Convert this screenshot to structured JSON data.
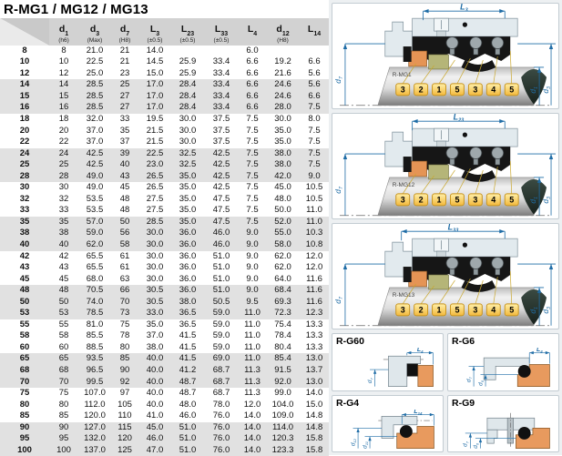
{
  "title": "R-MG1 / MG12 / MG13",
  "table": {
    "headers": [
      {
        "main": "",
        "sub": "",
        "note": ""
      },
      {
        "main": "d",
        "sub": "1",
        "note": "(h6)"
      },
      {
        "main": "d",
        "sub": "3",
        "note": "(Max)"
      },
      {
        "main": "d",
        "sub": "7",
        "note": "(H8)"
      },
      {
        "main": "L",
        "sub": "3",
        "note": "(±0.5)"
      },
      {
        "main": "L",
        "sub": "23",
        "note": "(±0.5)"
      },
      {
        "main": "L",
        "sub": "33",
        "note": "(±0.5)"
      },
      {
        "main": "L",
        "sub": "4",
        "note": ""
      },
      {
        "main": "d",
        "sub": "12",
        "note": "(H8)"
      },
      {
        "main": "L",
        "sub": "14",
        "note": ""
      }
    ],
    "rows": [
      [
        "8",
        "8",
        "21.0",
        "21",
        "14.0",
        "",
        "",
        "6.0",
        "",
        ""
      ],
      [
        "10",
        "10",
        "22.5",
        "21",
        "14.5",
        "25.9",
        "33.4",
        "6.6",
        "19.2",
        "6.6"
      ],
      [
        "12",
        "12",
        "25.0",
        "23",
        "15.0",
        "25.9",
        "33.4",
        "6.6",
        "21.6",
        "5.6"
      ],
      [
        "14",
        "14",
        "28.5",
        "25",
        "17.0",
        "28.4",
        "33.4",
        "6.6",
        "24.6",
        "5.6"
      ],
      [
        "15",
        "15",
        "28.5",
        "27",
        "17.0",
        "28.4",
        "33.4",
        "6.6",
        "24.6",
        "6.6"
      ],
      [
        "16",
        "16",
        "28.5",
        "27",
        "17.0",
        "28.4",
        "33.4",
        "6.6",
        "28.0",
        "7.5"
      ],
      [
        "18",
        "18",
        "32.0",
        "33",
        "19.5",
        "30.0",
        "37.5",
        "7.5",
        "30.0",
        "8.0"
      ],
      [
        "20",
        "20",
        "37.0",
        "35",
        "21.5",
        "30.0",
        "37.5",
        "7.5",
        "35.0",
        "7.5"
      ],
      [
        "22",
        "22",
        "37.0",
        "37",
        "21.5",
        "30.0",
        "37.5",
        "7.5",
        "35.0",
        "7.5"
      ],
      [
        "24",
        "24",
        "42.5",
        "39",
        "22.5",
        "32.5",
        "42.5",
        "7.5",
        "38.0",
        "7.5"
      ],
      [
        "25",
        "25",
        "42.5",
        "40",
        "23.0",
        "32.5",
        "42.5",
        "7.5",
        "38.0",
        "7.5"
      ],
      [
        "28",
        "28",
        "49.0",
        "43",
        "26.5",
        "35.0",
        "42.5",
        "7.5",
        "42.0",
        "9.0"
      ],
      [
        "30",
        "30",
        "49.0",
        "45",
        "26.5",
        "35.0",
        "42.5",
        "7.5",
        "45.0",
        "10.5"
      ],
      [
        "32",
        "32",
        "53.5",
        "48",
        "27.5",
        "35.0",
        "47.5",
        "7.5",
        "48.0",
        "10.5"
      ],
      [
        "33",
        "33",
        "53.5",
        "48",
        "27.5",
        "35.0",
        "47.5",
        "7.5",
        "50.0",
        "11.0"
      ],
      [
        "35",
        "35",
        "57.0",
        "50",
        "28.5",
        "35.0",
        "47.5",
        "7.5",
        "52.0",
        "11.0"
      ],
      [
        "38",
        "38",
        "59.0",
        "56",
        "30.0",
        "36.0",
        "46.0",
        "9.0",
        "55.0",
        "10.3"
      ],
      [
        "40",
        "40",
        "62.0",
        "58",
        "30.0",
        "36.0",
        "46.0",
        "9.0",
        "58.0",
        "10.8"
      ],
      [
        "42",
        "42",
        "65.5",
        "61",
        "30.0",
        "36.0",
        "51.0",
        "9.0",
        "62.0",
        "12.0"
      ],
      [
        "43",
        "43",
        "65.5",
        "61",
        "30.0",
        "36.0",
        "51.0",
        "9.0",
        "62.0",
        "12.0"
      ],
      [
        "45",
        "45",
        "68.0",
        "63",
        "30.0",
        "36.0",
        "51.0",
        "9.0",
        "64.0",
        "11.6"
      ],
      [
        "48",
        "48",
        "70.5",
        "66",
        "30.5",
        "36.0",
        "51.0",
        "9.0",
        "68.4",
        "11.6"
      ],
      [
        "50",
        "50",
        "74.0",
        "70",
        "30.5",
        "38.0",
        "50.5",
        "9.5",
        "69.3",
        "11.6"
      ],
      [
        "53",
        "53",
        "78.5",
        "73",
        "33.0",
        "36.5",
        "59.0",
        "11.0",
        "72.3",
        "12.3"
      ],
      [
        "55",
        "55",
        "81.0",
        "75",
        "35.0",
        "36.5",
        "59.0",
        "11.0",
        "75.4",
        "13.3"
      ],
      [
        "58",
        "58",
        "85.5",
        "78",
        "37.0",
        "41.5",
        "59.0",
        "11.0",
        "78.4",
        "13.3"
      ],
      [
        "60",
        "60",
        "88.5",
        "80",
        "38.0",
        "41.5",
        "59.0",
        "11.0",
        "80.4",
        "13.3"
      ],
      [
        "65",
        "65",
        "93.5",
        "85",
        "40.0",
        "41.5",
        "69.0",
        "11.0",
        "85.4",
        "13.0"
      ],
      [
        "68",
        "68",
        "96.5",
        "90",
        "40.0",
        "41.2",
        "68.7",
        "11.3",
        "91.5",
        "13.7"
      ],
      [
        "70",
        "70",
        "99.5",
        "92",
        "40.0",
        "48.7",
        "68.7",
        "11.3",
        "92.0",
        "13.0"
      ],
      [
        "75",
        "75",
        "107.0",
        "97",
        "40.0",
        "48.7",
        "68.7",
        "11.3",
        "99.0",
        "14.0"
      ],
      [
        "80",
        "80",
        "112.0",
        "105",
        "40.0",
        "48.0",
        "78.0",
        "12.0",
        "104.0",
        "15.0"
      ],
      [
        "85",
        "85",
        "120.0",
        "110",
        "41.0",
        "46.0",
        "76.0",
        "14.0",
        "109.0",
        "14.8"
      ],
      [
        "90",
        "90",
        "127.0",
        "115",
        "45.0",
        "51.0",
        "76.0",
        "14.0",
        "114.0",
        "14.8"
      ],
      [
        "95",
        "95",
        "132.0",
        "120",
        "46.0",
        "51.0",
        "76.0",
        "14.0",
        "120.3",
        "15.8"
      ],
      [
        "100",
        "100",
        "137.0",
        "125",
        "47.0",
        "51.0",
        "76.0",
        "14.0",
        "123.3",
        "15.8"
      ]
    ]
  },
  "position_tags": [
    "3",
    "2",
    "1",
    "5",
    "3",
    "4",
    "5"
  ],
  "shared_dims": {
    "left": {
      "main": "d",
      "sub": "7"
    },
    "right_inner": {
      "main": "d",
      "sub": "1"
    },
    "right_outer": {
      "main": "d",
      "sub": "3"
    }
  },
  "diagrams": [
    {
      "name": "R-MG1",
      "dim_top": {
        "main": "L",
        "sub": "3"
      }
    },
    {
      "name": "R-MG12",
      "dim_top": {
        "main": "L",
        "sub": "23"
      }
    },
    {
      "name": "R-MG13",
      "dim_top": {
        "main": "L",
        "sub": "33"
      }
    }
  ],
  "detail_diagrams": [
    {
      "name": "R-G60",
      "dim_top": {
        "main": "L",
        "sub": "4"
      },
      "dims_left": [
        {
          "main": "d",
          "sub": "7"
        }
      ]
    },
    {
      "name": "R-G6",
      "dim_top": {
        "main": "L",
        "sub": "4"
      },
      "dims_left": [
        {
          "main": "d",
          "sub": "7"
        },
        {
          "main": "d",
          "sub": "6"
        }
      ]
    },
    {
      "name": "R-G4",
      "dim_top": {
        "main": "L",
        "sub": "14"
      },
      "dims_left": [
        {
          "main": "d",
          "sub": "12"
        },
        {
          "main": "d",
          "sub": "11"
        }
      ]
    },
    {
      "name": "R-G9",
      "dim_top": null,
      "dims_left": [
        {
          "main": "d",
          "sub": "7"
        },
        {
          "main": "d",
          "sub": "6"
        }
      ]
    }
  ],
  "colors": {
    "dimension_blue": "#1e6ca6",
    "tag_yellow": "#f6c145",
    "tag_border": "#c8941e",
    "seal_orange": "#e59455",
    "seal_olive": "#b5b578",
    "elastomer_black": "#161616",
    "row_stripe": "#e1e1e1",
    "header_gray": "#d2d2d2"
  }
}
